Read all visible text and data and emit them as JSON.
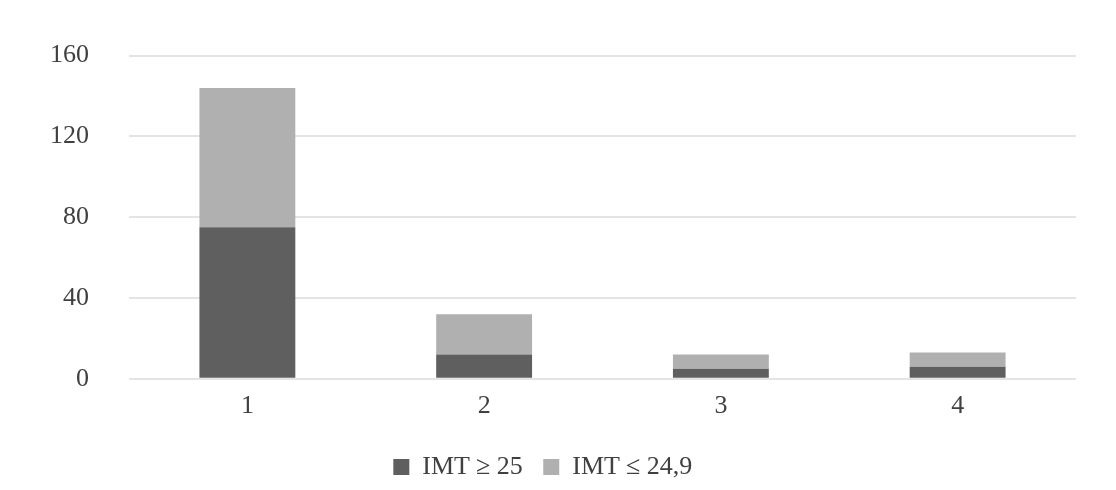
{
  "chart_data": {
    "type": "bar",
    "categories": [
      "1",
      "2",
      "3",
      "4"
    ],
    "stacked": true,
    "series": [
      {
        "name": "IMT ≥ 25",
        "color": "#5f5f5f",
        "values": [
          75,
          12,
          5,
          6
        ]
      },
      {
        "name": "IMT ≤ 24,9",
        "color": "#b0b0b0",
        "values": [
          69,
          20,
          7,
          7
        ]
      }
    ],
    "ylim": [
      0,
      160
    ],
    "yticks": [
      0,
      40,
      80,
      120,
      160
    ],
    "grid": "y",
    "legend": "bottom"
  }
}
